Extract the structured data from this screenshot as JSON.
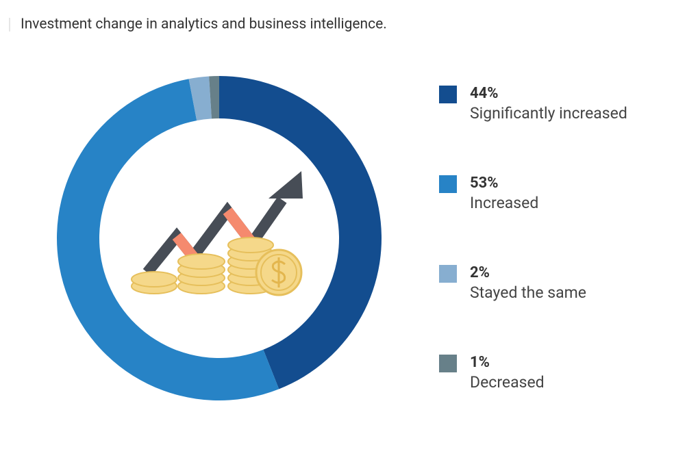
{
  "chart_data": {
    "type": "pie",
    "donut": true,
    "title": "Investment change in analytics and business intelligence.",
    "categories": [
      "Significantly increased",
      "Increased",
      "Stayed the same",
      "Decreased"
    ],
    "values": [
      44,
      53,
      2,
      1
    ],
    "value_labels": [
      "44%",
      "53%",
      "2%",
      "1%"
    ],
    "colors": [
      "#134d8f",
      "#2783c6",
      "#87aed0",
      "#678089"
    ]
  }
}
